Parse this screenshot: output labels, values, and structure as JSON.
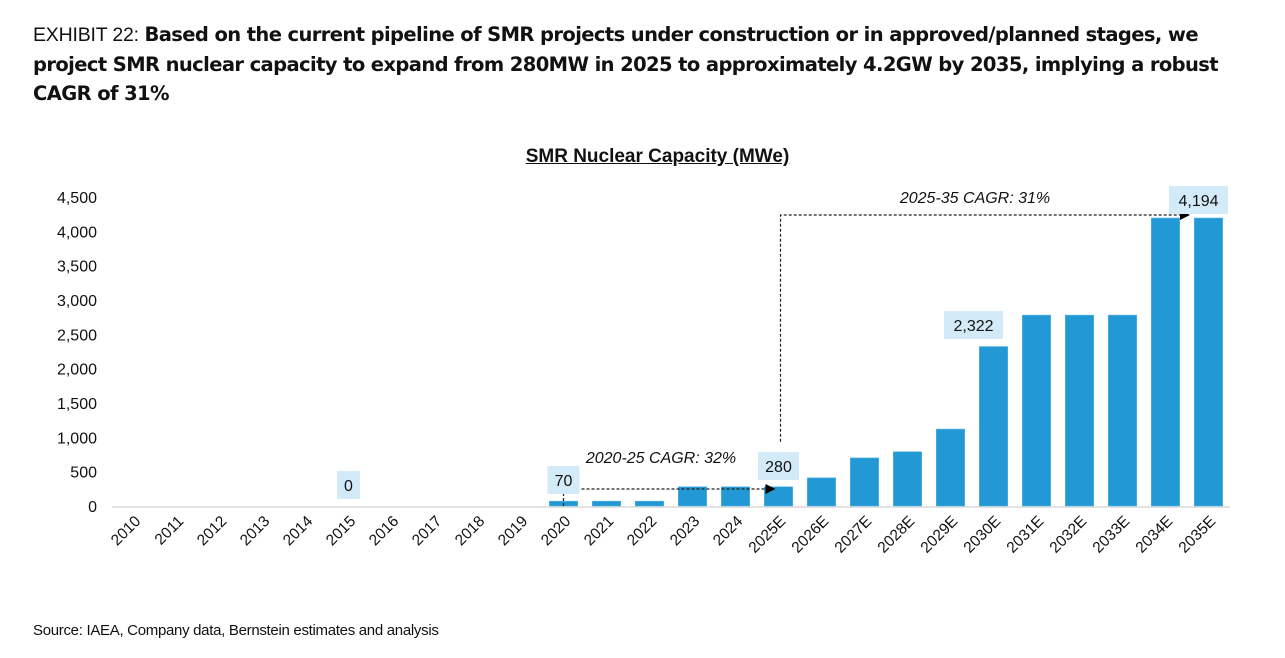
{
  "exhibit": {
    "label": "EXHIBIT 22:",
    "text": "Based on the current pipeline of SMR projects under construction or in approved/planned stages, we project SMR nuclear capacity to expand from 280MW in 2025 to approximately 4.2GW by 2035, implying a robust CAGR of 31%"
  },
  "source": "Source: IAEA, Company data, Bernstein estimates and analysis",
  "colors": {
    "bar": "#2299D5",
    "label_bg": "#D3EBF8",
    "axis": "#D9D9D9",
    "text": "#111111"
  },
  "chart_data": {
    "type": "bar",
    "title": "SMR Nuclear Capacity (MWe)",
    "xlabel": "",
    "ylabel": "",
    "ylim": [
      0,
      4500
    ],
    "yticks": [
      0,
      500,
      1000,
      1500,
      2000,
      2500,
      3000,
      3500,
      4000,
      4500
    ],
    "ytick_labels": [
      "0",
      "500",
      "1,000",
      "1,500",
      "2,000",
      "2,500",
      "3,000",
      "3,500",
      "4,000",
      "4,500"
    ],
    "grid": false,
    "legend": "none",
    "categories": [
      "2010",
      "2011",
      "2012",
      "2013",
      "2014",
      "2015",
      "2016",
      "2017",
      "2018",
      "2019",
      "2020",
      "2021",
      "2022",
      "2023",
      "2024",
      "2025E",
      "2026E",
      "2027E",
      "2028E",
      "2029E",
      "2030E",
      "2031E",
      "2032E",
      "2033E",
      "2034E",
      "2035E"
    ],
    "values": [
      0,
      0,
      0,
      0,
      0,
      0,
      0,
      0,
      0,
      0,
      70,
      70,
      70,
      280,
      280,
      280,
      410,
      700,
      790,
      1120,
      2322,
      2780,
      2780,
      2780,
      4194,
      4194
    ],
    "data_labels": [
      {
        "category": "2015",
        "text": "0",
        "value": 0
      },
      {
        "category": "2020",
        "text": "70",
        "value": 70
      },
      {
        "category": "2025E",
        "text": "280",
        "value": 280
      },
      {
        "category": "2030E",
        "text": "2,322",
        "value": 2322
      },
      {
        "category": "2035E",
        "text": "4,194",
        "value": 4194
      }
    ],
    "annotations": [
      {
        "text": "2020-25 CAGR: 32%",
        "from": "2020",
        "to": "2025E",
        "style": "dashed-arrow"
      },
      {
        "text": "2025-35 CAGR: 31%",
        "from": "2025E",
        "to": "2035E",
        "style": "dashed-arrow"
      }
    ]
  }
}
